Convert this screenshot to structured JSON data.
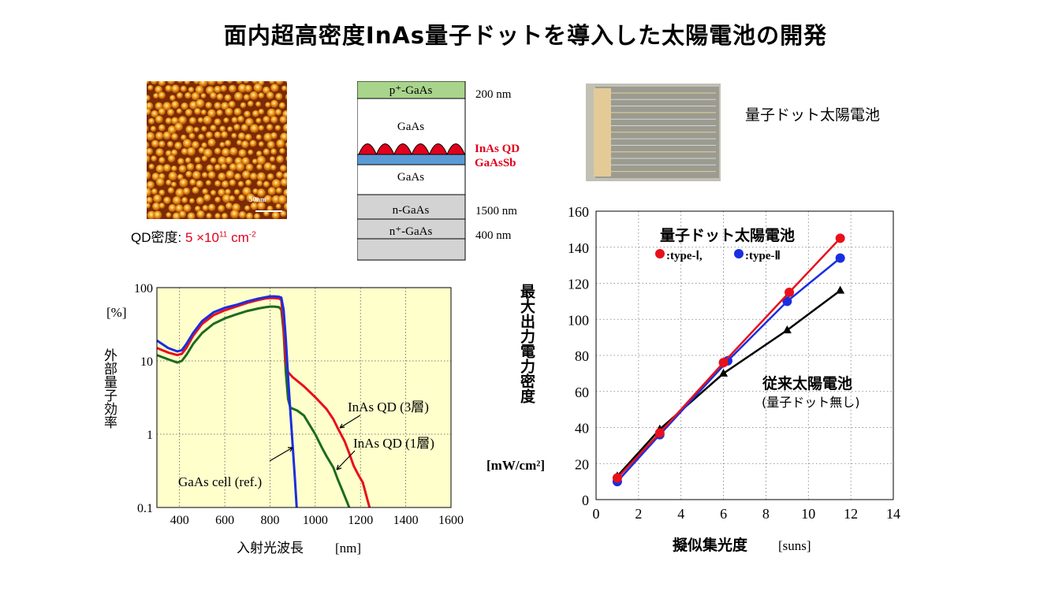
{
  "slide": {
    "title": "面内超高密度InAs量子ドットを導入した太陽電池の開発",
    "afm_scale_label": "50nm",
    "qd_density": {
      "label": "QD密度: ",
      "value": "5 ×10",
      "exp": "11",
      "unit": " cm",
      "unit_exp": "-2"
    },
    "layers": [
      {
        "label": "p⁺-GaAs",
        "thickness": "200 nm",
        "color": "#a8d48b"
      },
      {
        "label": "GaAs",
        "thickness": "",
        "color": "#ffffff"
      },
      {
        "label": "GaAs",
        "thickness": "",
        "color": "#ffffff"
      },
      {
        "label": "n-GaAs",
        "thickness": "1500 nm",
        "color": "#d3d3d3"
      },
      {
        "label": "n⁺-GaAs",
        "thickness": "400 nm",
        "color": "#d3d3d3"
      }
    ],
    "layer_labels": {
      "qd": "InAs QD",
      "gaassb": "GaAsSb"
    },
    "photo_caption": "量子ドット太陽電池",
    "colors": {
      "red": "#e8101a",
      "blue": "#1a2ee0",
      "green": "#1d6b1d",
      "black": "#000000",
      "plot_bg": "#ffffcc",
      "qd_red": "#e0001b",
      "gaassb_blue": "#5a9bd5"
    }
  },
  "chart_data": [
    {
      "type": "line",
      "xlabel": "入射光波長",
      "xunit": "[nm]",
      "ylabel": "外部量子効率",
      "yunit": "[%]",
      "xlim": [
        300,
        1600
      ],
      "ylim": [
        0.1,
        100
      ],
      "yscale": "log",
      "xticks": [
        "400",
        "600",
        "800",
        "1000",
        "1200",
        "1400",
        "1600"
      ],
      "yticks": [
        "0.1",
        "1",
        "10",
        "100"
      ],
      "grid": "dotted",
      "series": [
        {
          "name": "InAs QD (3層)",
          "color": "#e8101a",
          "x": [
            300,
            350,
            390,
            410,
            430,
            460,
            500,
            550,
            600,
            650,
            700,
            750,
            780,
            800,
            820,
            840,
            850,
            860,
            870,
            880,
            900,
            950,
            1000,
            1050,
            1080,
            1100,
            1130,
            1150,
            1170,
            1190,
            1210,
            1230,
            1240
          ],
          "y": [
            15,
            13,
            12,
            12.5,
            15,
            22,
            32,
            42,
            49,
            55,
            62,
            68,
            71,
            72,
            72,
            71,
            68,
            30,
            10,
            7,
            6,
            4.5,
            3.2,
            2.2,
            1.6,
            1.2,
            0.8,
            0.55,
            0.37,
            0.28,
            0.22,
            0.13,
            0.1
          ]
        },
        {
          "name": "InAs QD (1層)",
          "color": "#1d6b1d",
          "x": [
            300,
            350,
            390,
            410,
            430,
            460,
            500,
            550,
            600,
            650,
            700,
            750,
            780,
            800,
            820,
            840,
            850,
            860,
            870,
            880,
            890,
            920,
            950,
            1000,
            1030,
            1050,
            1080,
            1100,
            1120,
            1140,
            1150
          ],
          "y": [
            12,
            10.5,
            9.5,
            10,
            12,
            17,
            24,
            32,
            38,
            43,
            48,
            52,
            54,
            55,
            55,
            54,
            50,
            25,
            7,
            3,
            2.3,
            2.1,
            1.8,
            1.0,
            0.65,
            0.5,
            0.35,
            0.24,
            0.17,
            0.12,
            0.1
          ]
        },
        {
          "name": "GaAs cell (ref.)",
          "color": "#1a2ee0",
          "x": [
            300,
            350,
            390,
            410,
            430,
            460,
            500,
            550,
            600,
            650,
            700,
            750,
            780,
            800,
            820,
            840,
            850,
            860,
            870,
            880,
            890,
            900,
            910,
            918
          ],
          "y": [
            19,
            15,
            13.5,
            14,
            17,
            24,
            35,
            46,
            53,
            58,
            65,
            71,
            74,
            76,
            76,
            75,
            73,
            50,
            20,
            6,
            2,
            0.7,
            0.25,
            0.1
          ]
        }
      ]
    },
    {
      "type": "line",
      "xlabel": "擬似集光度",
      "xunit": "[suns]",
      "ylabel": "最大出力電力密度",
      "yunit": "[mW/cm²]",
      "xlim": [
        0,
        14
      ],
      "ylim": [
        0,
        160
      ],
      "xticks": [
        "0",
        "2",
        "4",
        "6",
        "8",
        "10",
        "12",
        "14"
      ],
      "yticks": [
        "0",
        "20",
        "40",
        "60",
        "80",
        "100",
        "120",
        "140",
        "160"
      ],
      "grid": "dotted",
      "legend_title": "量子ドット太陽電池",
      "legend_items": [
        ":type-Ⅰ,",
        ":type-Ⅱ"
      ],
      "annotation": "従来太陽電池",
      "annotation_sub": "(量子ドット無し)",
      "series": [
        {
          "name": "type-Ⅰ",
          "color": "#e8101a",
          "marker": "circle",
          "x": [
            1.0,
            3.0,
            6.0,
            9.1,
            11.5
          ],
          "y": [
            12,
            37,
            76,
            115,
            145
          ]
        },
        {
          "name": "type-Ⅱ",
          "color": "#1a2ee0",
          "marker": "circle",
          "x": [
            1.0,
            3.0,
            6.2,
            9.0,
            11.5
          ],
          "y": [
            10,
            36,
            77,
            110,
            134
          ]
        },
        {
          "name": "従来太陽電池",
          "color": "#000000",
          "marker": "triangle",
          "x": [
            1.0,
            3.0,
            6.0,
            9.0,
            11.5
          ],
          "y": [
            13,
            39,
            70,
            94,
            116
          ]
        }
      ]
    }
  ]
}
